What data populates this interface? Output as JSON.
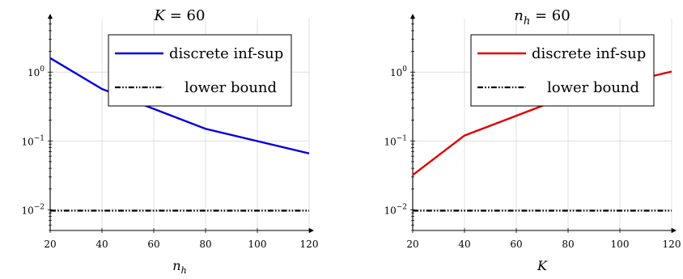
{
  "chart_data": [
    {
      "type": "line",
      "title": {
        "main": "K",
        "rest": " = 60"
      },
      "xlabel": {
        "main": "n",
        "sub": "h"
      },
      "x": [
        20,
        40,
        80,
        120
      ],
      "xlim": [
        20,
        120
      ],
      "xticks": [
        20,
        40,
        60,
        80,
        100,
        120
      ],
      "yscale": "log",
      "ylim": [
        0.005,
        6
      ],
      "yticks": [
        {
          "base": "10",
          "exp": "0",
          "value": 1
        },
        {
          "base": "10",
          "exp": "−1",
          "value": 0.1
        },
        {
          "base": "10",
          "exp": "−2",
          "value": 0.01
        }
      ],
      "grid": true,
      "legend": "top-right",
      "series": [
        {
          "name": "discrete inf-sup",
          "values": [
            1.6,
            0.57,
            0.15,
            0.066
          ],
          "color": "#0000e0",
          "style": "solid"
        },
        {
          "name": "lower bound",
          "values": [
            0.0097,
            0.0097,
            0.0097,
            0.0097
          ],
          "color": "#000000",
          "style": "dash-dot-dot"
        }
      ]
    },
    {
      "type": "line",
      "title": {
        "main": "n",
        "sub": "h",
        "rest": " = 60"
      },
      "xlabel": {
        "main": "K",
        "sub": ""
      },
      "x": [
        20,
        40,
        80,
        120
      ],
      "xlim": [
        20,
        120
      ],
      "xticks": [
        20,
        40,
        60,
        80,
        100,
        120
      ],
      "yscale": "log",
      "ylim": [
        0.005,
        6
      ],
      "yticks": [
        {
          "base": "10",
          "exp": "0",
          "value": 1
        },
        {
          "base": "10",
          "exp": "−1",
          "value": 0.1
        },
        {
          "base": "10",
          "exp": "−2",
          "value": 0.01
        }
      ],
      "grid": true,
      "legend": "top-right",
      "series": [
        {
          "name": "discrete inf-sup",
          "values": [
            0.032,
            0.12,
            0.45,
            1.02
          ],
          "color": "#e00000",
          "style": "solid"
        },
        {
          "name": "lower bound",
          "values": [
            0.0097,
            0.0097,
            0.0097,
            0.0097
          ],
          "color": "#000000",
          "style": "dash-dot-dot"
        }
      ]
    }
  ]
}
